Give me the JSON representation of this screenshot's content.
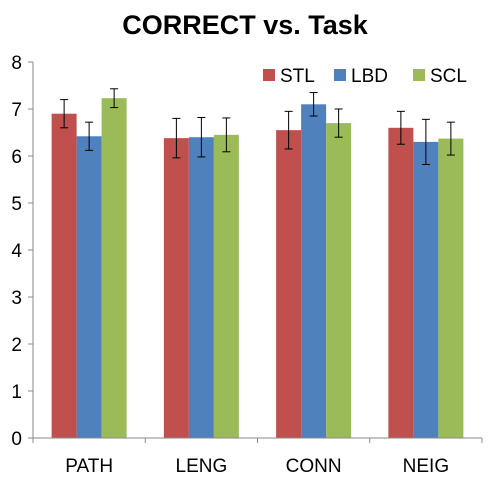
{
  "chart_data": {
    "type": "bar",
    "title": "CORRECT vs. Task",
    "xlabel": "",
    "ylabel": "",
    "categories": [
      "PATH",
      "LENG",
      "CONN",
      "NEIG"
    ],
    "ylim": [
      0,
      8
    ],
    "yticks": [
      "0",
      "1",
      "2",
      "3",
      "4",
      "5",
      "6",
      "7",
      "8"
    ],
    "grid": false,
    "legend_position": "top-right",
    "error_bars": true,
    "series": [
      {
        "name": "STL",
        "color": "#C0504D",
        "values": [
          6.9,
          6.38,
          6.55,
          6.6
        ],
        "errors": [
          0.3,
          0.42,
          0.4,
          0.35
        ]
      },
      {
        "name": "LBD",
        "color": "#4F81BD",
        "values": [
          6.42,
          6.4,
          7.1,
          6.3
        ],
        "errors": [
          0.3,
          0.42,
          0.25,
          0.48
        ]
      },
      {
        "name": "SCL",
        "color": "#9BBB59",
        "values": [
          7.23,
          6.45,
          6.7,
          6.37
        ],
        "errors": [
          0.2,
          0.36,
          0.3,
          0.35
        ]
      }
    ]
  }
}
